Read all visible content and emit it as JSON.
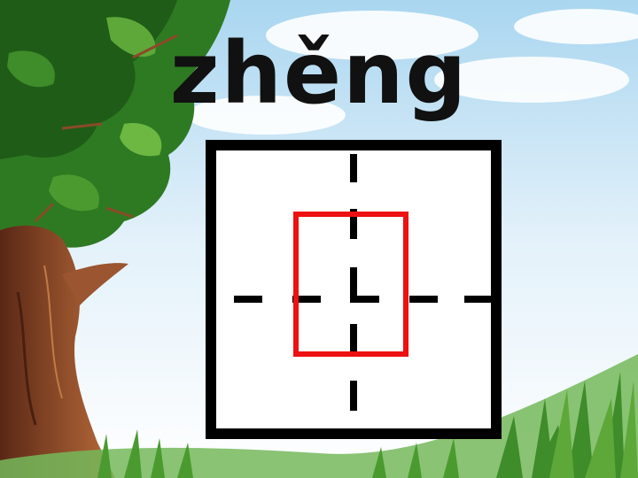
{
  "slide": {
    "pinyin": "zhěng",
    "background_scene": {
      "sky_color": "#bfe0f3",
      "tree_leaf_color": "#2f7d25",
      "trunk_color": "#7b3f21",
      "grass_color": "#5fa84a"
    },
    "writing_grid": {
      "border_color": "#000000",
      "guide_line_color": "#000000",
      "highlight_color": "#ee1111"
    }
  }
}
